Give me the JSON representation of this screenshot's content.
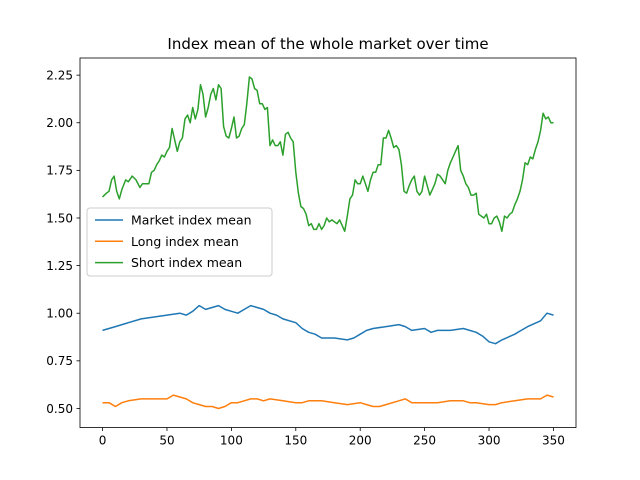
{
  "chart_data": {
    "type": "line",
    "title": "Index mean of the whole market over time",
    "xlabel": "",
    "ylabel": "",
    "xlim": [
      -17.5,
      367.5
    ],
    "ylim": [
      0.4,
      2.34
    ],
    "xticks": [
      0,
      50,
      100,
      150,
      200,
      250,
      300,
      350
    ],
    "yticks": [
      0.5,
      0.75,
      1.0,
      1.25,
      1.5,
      1.75,
      2.0,
      2.25
    ],
    "grid": false,
    "legend_position": "center-left",
    "series": [
      {
        "name": "Market index mean",
        "color": "#1f77b4",
        "points": [
          [
            0,
            0.91
          ],
          [
            10,
            0.93
          ],
          [
            20,
            0.95
          ],
          [
            30,
            0.97
          ],
          [
            40,
            0.98
          ],
          [
            50,
            0.99
          ],
          [
            60,
            1.0
          ],
          [
            65,
            0.99
          ],
          [
            70,
            1.01
          ],
          [
            75,
            1.04
          ],
          [
            80,
            1.02
          ],
          [
            85,
            1.03
          ],
          [
            90,
            1.04
          ],
          [
            95,
            1.02
          ],
          [
            100,
            1.01
          ],
          [
            105,
            1.0
          ],
          [
            110,
            1.02
          ],
          [
            115,
            1.04
          ],
          [
            120,
            1.03
          ],
          [
            125,
            1.02
          ],
          [
            130,
            1.0
          ],
          [
            135,
            0.99
          ],
          [
            140,
            0.97
          ],
          [
            150,
            0.95
          ],
          [
            155,
            0.92
          ],
          [
            160,
            0.9
          ],
          [
            165,
            0.89
          ],
          [
            170,
            0.87
          ],
          [
            180,
            0.87
          ],
          [
            190,
            0.86
          ],
          [
            195,
            0.87
          ],
          [
            200,
            0.89
          ],
          [
            205,
            0.91
          ],
          [
            210,
            0.92
          ],
          [
            220,
            0.93
          ],
          [
            230,
            0.94
          ],
          [
            235,
            0.93
          ],
          [
            240,
            0.91
          ],
          [
            250,
            0.92
          ],
          [
            255,
            0.9
          ],
          [
            260,
            0.91
          ],
          [
            270,
            0.91
          ],
          [
            280,
            0.92
          ],
          [
            285,
            0.91
          ],
          [
            290,
            0.9
          ],
          [
            295,
            0.88
          ],
          [
            300,
            0.85
          ],
          [
            305,
            0.84
          ],
          [
            310,
            0.86
          ],
          [
            320,
            0.89
          ],
          [
            325,
            0.91
          ],
          [
            330,
            0.93
          ],
          [
            340,
            0.96
          ],
          [
            345,
            1.0
          ],
          [
            350,
            0.99
          ]
        ]
      },
      {
        "name": "Long index mean",
        "color": "#ff7f0e",
        "points": [
          [
            0,
            0.53
          ],
          [
            5,
            0.53
          ],
          [
            10,
            0.51
          ],
          [
            15,
            0.53
          ],
          [
            20,
            0.54
          ],
          [
            30,
            0.55
          ],
          [
            40,
            0.55
          ],
          [
            45,
            0.55
          ],
          [
            50,
            0.55
          ],
          [
            55,
            0.57
          ],
          [
            60,
            0.56
          ],
          [
            65,
            0.55
          ],
          [
            70,
            0.53
          ],
          [
            75,
            0.52
          ],
          [
            80,
            0.51
          ],
          [
            85,
            0.51
          ],
          [
            90,
            0.5
          ],
          [
            95,
            0.51
          ],
          [
            100,
            0.53
          ],
          [
            105,
            0.53
          ],
          [
            110,
            0.54
          ],
          [
            115,
            0.55
          ],
          [
            120,
            0.55
          ],
          [
            125,
            0.54
          ],
          [
            130,
            0.55
          ],
          [
            140,
            0.54
          ],
          [
            150,
            0.53
          ],
          [
            155,
            0.53
          ],
          [
            160,
            0.54
          ],
          [
            170,
            0.54
          ],
          [
            180,
            0.53
          ],
          [
            190,
            0.52
          ],
          [
            200,
            0.53
          ],
          [
            205,
            0.52
          ],
          [
            210,
            0.51
          ],
          [
            215,
            0.51
          ],
          [
            220,
            0.52
          ],
          [
            230,
            0.54
          ],
          [
            235,
            0.55
          ],
          [
            240,
            0.53
          ],
          [
            250,
            0.53
          ],
          [
            260,
            0.53
          ],
          [
            270,
            0.54
          ],
          [
            280,
            0.54
          ],
          [
            285,
            0.53
          ],
          [
            290,
            0.53
          ],
          [
            300,
            0.52
          ],
          [
            305,
            0.52
          ],
          [
            310,
            0.53
          ],
          [
            320,
            0.54
          ],
          [
            330,
            0.55
          ],
          [
            340,
            0.55
          ],
          [
            345,
            0.57
          ],
          [
            350,
            0.56
          ]
        ]
      },
      {
        "name": "Short index mean",
        "color": "#2ca02c",
        "points": [
          [
            0,
            1.61
          ],
          [
            3,
            1.63
          ],
          [
            5,
            1.64
          ],
          [
            7,
            1.7
          ],
          [
            9,
            1.72
          ],
          [
            11,
            1.64
          ],
          [
            13,
            1.6
          ],
          [
            15,
            1.65
          ],
          [
            18,
            1.7
          ],
          [
            20,
            1.69
          ],
          [
            23,
            1.72
          ],
          [
            26,
            1.7
          ],
          [
            29,
            1.66
          ],
          [
            31,
            1.68
          ],
          [
            34,
            1.68
          ],
          [
            36,
            1.68
          ],
          [
            38,
            1.74
          ],
          [
            40,
            1.75
          ],
          [
            42,
            1.78
          ],
          [
            44,
            1.8
          ],
          [
            46,
            1.83
          ],
          [
            48,
            1.82
          ],
          [
            50,
            1.85
          ],
          [
            52,
            1.87
          ],
          [
            54,
            1.97
          ],
          [
            56,
            1.91
          ],
          [
            58,
            1.85
          ],
          [
            60,
            1.9
          ],
          [
            62,
            1.92
          ],
          [
            64,
            2.02
          ],
          [
            66,
            2.04
          ],
          [
            68,
            2.0
          ],
          [
            70,
            2.08
          ],
          [
            72,
            2.02
          ],
          [
            74,
            2.07
          ],
          [
            76,
            2.2
          ],
          [
            78,
            2.15
          ],
          [
            80,
            2.03
          ],
          [
            82,
            2.08
          ],
          [
            84,
            2.15
          ],
          [
            86,
            2.18
          ],
          [
            88,
            2.12
          ],
          [
            90,
            2.2
          ],
          [
            92,
            2.18
          ],
          [
            94,
            1.98
          ],
          [
            96,
            1.93
          ],
          [
            98,
            1.92
          ],
          [
            100,
            1.97
          ],
          [
            102,
            2.03
          ],
          [
            104,
            1.92
          ],
          [
            106,
            1.93
          ],
          [
            108,
            1.97
          ],
          [
            110,
            1.99
          ],
          [
            112,
            2.1
          ],
          [
            114,
            2.24
          ],
          [
            116,
            2.23
          ],
          [
            118,
            2.18
          ],
          [
            120,
            2.17
          ],
          [
            122,
            2.1
          ],
          [
            124,
            2.1
          ],
          [
            126,
            2.07
          ],
          [
            128,
            2.08
          ],
          [
            130,
            1.88
          ],
          [
            132,
            1.91
          ],
          [
            134,
            1.88
          ],
          [
            136,
            1.88
          ],
          [
            138,
            1.9
          ],
          [
            140,
            1.83
          ],
          [
            142,
            1.94
          ],
          [
            144,
            1.95
          ],
          [
            146,
            1.92
          ],
          [
            148,
            1.9
          ],
          [
            150,
            1.74
          ],
          [
            152,
            1.63
          ],
          [
            154,
            1.56
          ],
          [
            156,
            1.55
          ],
          [
            158,
            1.52
          ],
          [
            160,
            1.46
          ],
          [
            162,
            1.47
          ],
          [
            164,
            1.44
          ],
          [
            166,
            1.44
          ],
          [
            168,
            1.47
          ],
          [
            170,
            1.44
          ],
          [
            172,
            1.46
          ],
          [
            174,
            1.5
          ],
          [
            176,
            1.48
          ],
          [
            178,
            1.49
          ],
          [
            180,
            1.48
          ],
          [
            182,
            1.47
          ],
          [
            184,
            1.49
          ],
          [
            186,
            1.46
          ],
          [
            188,
            1.43
          ],
          [
            190,
            1.51
          ],
          [
            192,
            1.6
          ],
          [
            194,
            1.62
          ],
          [
            196,
            1.7
          ],
          [
            198,
            1.68
          ],
          [
            200,
            1.68
          ],
          [
            202,
            1.72
          ],
          [
            204,
            1.68
          ],
          [
            206,
            1.64
          ],
          [
            208,
            1.7
          ],
          [
            210,
            1.74
          ],
          [
            212,
            1.74
          ],
          [
            214,
            1.78
          ],
          [
            216,
            1.78
          ],
          [
            218,
            1.92
          ],
          [
            220,
            1.92
          ],
          [
            222,
            1.96
          ],
          [
            224,
            1.92
          ],
          [
            226,
            1.87
          ],
          [
            228,
            1.88
          ],
          [
            230,
            1.86
          ],
          [
            232,
            1.78
          ],
          [
            234,
            1.64
          ],
          [
            236,
            1.63
          ],
          [
            238,
            1.67
          ],
          [
            240,
            1.7
          ],
          [
            242,
            1.72
          ],
          [
            244,
            1.64
          ],
          [
            246,
            1.62
          ],
          [
            248,
            1.64
          ],
          [
            250,
            1.72
          ],
          [
            252,
            1.67
          ],
          [
            254,
            1.62
          ],
          [
            256,
            1.65
          ],
          [
            258,
            1.68
          ],
          [
            260,
            1.73
          ],
          [
            262,
            1.72
          ],
          [
            264,
            1.7
          ],
          [
            266,
            1.68
          ],
          [
            268,
            1.75
          ],
          [
            270,
            1.79
          ],
          [
            272,
            1.82
          ],
          [
            274,
            1.85
          ],
          [
            276,
            1.88
          ],
          [
            278,
            1.75
          ],
          [
            280,
            1.72
          ],
          [
            282,
            1.68
          ],
          [
            284,
            1.66
          ],
          [
            286,
            1.62
          ],
          [
            288,
            1.62
          ],
          [
            290,
            1.63
          ],
          [
            292,
            1.52
          ],
          [
            294,
            1.51
          ],
          [
            296,
            1.5
          ],
          [
            298,
            1.52
          ],
          [
            300,
            1.47
          ],
          [
            302,
            1.47
          ],
          [
            304,
            1.5
          ],
          [
            306,
            1.51
          ],
          [
            308,
            1.48
          ],
          [
            310,
            1.43
          ],
          [
            312,
            1.51
          ],
          [
            314,
            1.5
          ],
          [
            316,
            1.52
          ],
          [
            318,
            1.53
          ],
          [
            320,
            1.57
          ],
          [
            322,
            1.6
          ],
          [
            324,
            1.64
          ],
          [
            326,
            1.7
          ],
          [
            328,
            1.79
          ],
          [
            330,
            1.78
          ],
          [
            332,
            1.82
          ],
          [
            334,
            1.81
          ],
          [
            336,
            1.86
          ],
          [
            338,
            1.9
          ],
          [
            340,
            1.96
          ],
          [
            342,
            2.05
          ],
          [
            344,
            2.02
          ],
          [
            346,
            2.03
          ],
          [
            348,
            2.0
          ],
          [
            350,
            2.0
          ]
        ]
      }
    ]
  }
}
